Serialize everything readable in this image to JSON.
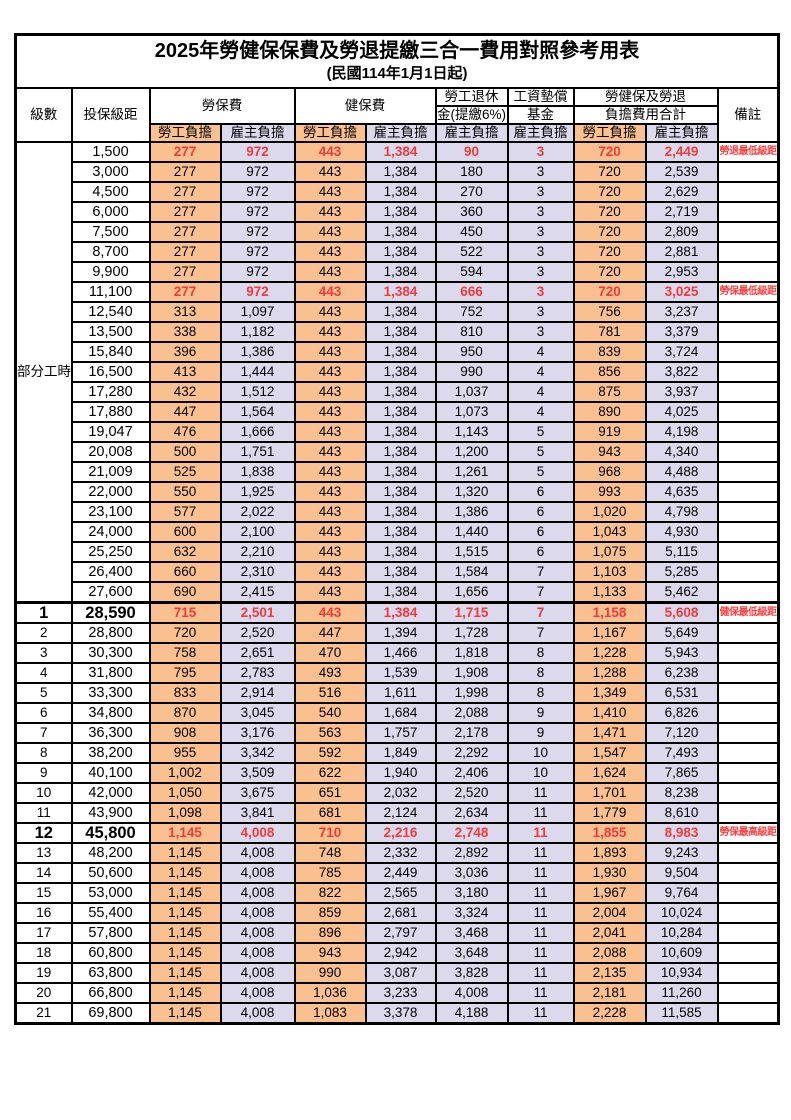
{
  "title": "2025年勞健保保費及勞退提繳三合一費用對照參考用表",
  "subtitle": "(民國114年1月1日起)",
  "header": {
    "level": "級數",
    "bracket": "投保級距",
    "labor_ins": "勞保費",
    "health_ins": "健保費",
    "pension_l1": "勞工退休",
    "pension_l2": "金(提繳6%)",
    "fund_l1": "工資墊償",
    "fund_l2": "基金",
    "total_l1": "勞健保及勞退",
    "total_l2": "負擔費用合計",
    "remark": "備註",
    "employee": "勞工負擔",
    "employer": "雇主負擔"
  },
  "part_time_label": "部分工時",
  "part_time_row_count": 23,
  "colors": {
    "emp-bg": "#FAC090",
    "er-bg": "#DCD9ED",
    "red": "#EF3B3B",
    "remark-red": "#FB4141",
    "border": "#000000"
  },
  "rows": [
    {
      "level": "",
      "bracket": "1,500",
      "v": [
        "277",
        "972",
        "443",
        "1,384",
        "90",
        "3",
        "720",
        "2,449"
      ],
      "remark": "勞退最低級距",
      "hl": true
    },
    {
      "level": "",
      "bracket": "3,000",
      "v": [
        "277",
        "972",
        "443",
        "1,384",
        "180",
        "3",
        "720",
        "2,539"
      ],
      "remark": ""
    },
    {
      "level": "",
      "bracket": "4,500",
      "v": [
        "277",
        "972",
        "443",
        "1,384",
        "270",
        "3",
        "720",
        "2,629"
      ],
      "remark": ""
    },
    {
      "level": "",
      "bracket": "6,000",
      "v": [
        "277",
        "972",
        "443",
        "1,384",
        "360",
        "3",
        "720",
        "2,719"
      ],
      "remark": ""
    },
    {
      "level": "",
      "bracket": "7,500",
      "v": [
        "277",
        "972",
        "443",
        "1,384",
        "450",
        "3",
        "720",
        "2,809"
      ],
      "remark": ""
    },
    {
      "level": "",
      "bracket": "8,700",
      "v": [
        "277",
        "972",
        "443",
        "1,384",
        "522",
        "3",
        "720",
        "2,881"
      ],
      "remark": ""
    },
    {
      "level": "",
      "bracket": "9,900",
      "v": [
        "277",
        "972",
        "443",
        "1,384",
        "594",
        "3",
        "720",
        "2,953"
      ],
      "remark": ""
    },
    {
      "level": "",
      "bracket": "11,100",
      "v": [
        "277",
        "972",
        "443",
        "1,384",
        "666",
        "3",
        "720",
        "3,025"
      ],
      "remark": "勞保最低級距",
      "hl": true
    },
    {
      "level": "",
      "bracket": "12,540",
      "v": [
        "313",
        "1,097",
        "443",
        "1,384",
        "752",
        "3",
        "756",
        "3,237"
      ],
      "remark": ""
    },
    {
      "level": "",
      "bracket": "13,500",
      "v": [
        "338",
        "1,182",
        "443",
        "1,384",
        "810",
        "3",
        "781",
        "3,379"
      ],
      "remark": ""
    },
    {
      "level": "",
      "bracket": "15,840",
      "v": [
        "396",
        "1,386",
        "443",
        "1,384",
        "950",
        "4",
        "839",
        "3,724"
      ],
      "remark": ""
    },
    {
      "level": "",
      "bracket": "16,500",
      "v": [
        "413",
        "1,444",
        "443",
        "1,384",
        "990",
        "4",
        "856",
        "3,822"
      ],
      "remark": ""
    },
    {
      "level": "",
      "bracket": "17,280",
      "v": [
        "432",
        "1,512",
        "443",
        "1,384",
        "1,037",
        "4",
        "875",
        "3,937"
      ],
      "remark": ""
    },
    {
      "level": "",
      "bracket": "17,880",
      "v": [
        "447",
        "1,564",
        "443",
        "1,384",
        "1,073",
        "4",
        "890",
        "4,025"
      ],
      "remark": ""
    },
    {
      "level": "",
      "bracket": "19,047",
      "v": [
        "476",
        "1,666",
        "443",
        "1,384",
        "1,143",
        "5",
        "919",
        "4,198"
      ],
      "remark": ""
    },
    {
      "level": "",
      "bracket": "20,008",
      "v": [
        "500",
        "1,751",
        "443",
        "1,384",
        "1,200",
        "5",
        "943",
        "4,340"
      ],
      "remark": ""
    },
    {
      "level": "",
      "bracket": "21,009",
      "v": [
        "525",
        "1,838",
        "443",
        "1,384",
        "1,261",
        "5",
        "968",
        "4,488"
      ],
      "remark": ""
    },
    {
      "level": "",
      "bracket": "22,000",
      "v": [
        "550",
        "1,925",
        "443",
        "1,384",
        "1,320",
        "6",
        "993",
        "4,635"
      ],
      "remark": ""
    },
    {
      "level": "",
      "bracket": "23,100",
      "v": [
        "577",
        "2,022",
        "443",
        "1,384",
        "1,386",
        "6",
        "1,020",
        "4,798"
      ],
      "remark": ""
    },
    {
      "level": "",
      "bracket": "24,000",
      "v": [
        "600",
        "2,100",
        "443",
        "1,384",
        "1,440",
        "6",
        "1,043",
        "4,930"
      ],
      "remark": ""
    },
    {
      "level": "",
      "bracket": "25,250",
      "v": [
        "632",
        "2,210",
        "443",
        "1,384",
        "1,515",
        "6",
        "1,075",
        "5,115"
      ],
      "remark": ""
    },
    {
      "level": "",
      "bracket": "26,400",
      "v": [
        "660",
        "2,310",
        "443",
        "1,384",
        "1,584",
        "7",
        "1,103",
        "5,285"
      ],
      "remark": ""
    },
    {
      "level": "",
      "bracket": "27,600",
      "v": [
        "690",
        "2,415",
        "443",
        "1,384",
        "1,656",
        "7",
        "1,133",
        "5,462"
      ],
      "remark": ""
    },
    {
      "level": "1",
      "bracket": "28,590",
      "v": [
        "715",
        "2,501",
        "443",
        "1,384",
        "1,715",
        "7",
        "1,158",
        "5,608"
      ],
      "remark": "健保最低級距",
      "hl": true,
      "big": true
    },
    {
      "level": "2",
      "bracket": "28,800",
      "v": [
        "720",
        "2,520",
        "447",
        "1,394",
        "1,728",
        "7",
        "1,167",
        "5,649"
      ],
      "remark": ""
    },
    {
      "level": "3",
      "bracket": "30,300",
      "v": [
        "758",
        "2,651",
        "470",
        "1,466",
        "1,818",
        "8",
        "1,228",
        "5,943"
      ],
      "remark": ""
    },
    {
      "level": "4",
      "bracket": "31,800",
      "v": [
        "795",
        "2,783",
        "493",
        "1,539",
        "1,908",
        "8",
        "1,288",
        "6,238"
      ],
      "remark": ""
    },
    {
      "level": "5",
      "bracket": "33,300",
      "v": [
        "833",
        "2,914",
        "516",
        "1,611",
        "1,998",
        "8",
        "1,349",
        "6,531"
      ],
      "remark": ""
    },
    {
      "level": "6",
      "bracket": "34,800",
      "v": [
        "870",
        "3,045",
        "540",
        "1,684",
        "2,088",
        "9",
        "1,410",
        "6,826"
      ],
      "remark": ""
    },
    {
      "level": "7",
      "bracket": "36,300",
      "v": [
        "908",
        "3,176",
        "563",
        "1,757",
        "2,178",
        "9",
        "1,471",
        "7,120"
      ],
      "remark": ""
    },
    {
      "level": "8",
      "bracket": "38,200",
      "v": [
        "955",
        "3,342",
        "592",
        "1,849",
        "2,292",
        "10",
        "1,547",
        "7,493"
      ],
      "remark": ""
    },
    {
      "level": "9",
      "bracket": "40,100",
      "v": [
        "1,002",
        "3,509",
        "622",
        "1,940",
        "2,406",
        "10",
        "1,624",
        "7,865"
      ],
      "remark": ""
    },
    {
      "level": "10",
      "bracket": "42,000",
      "v": [
        "1,050",
        "3,675",
        "651",
        "2,032",
        "2,520",
        "11",
        "1,701",
        "8,238"
      ],
      "remark": ""
    },
    {
      "level": "11",
      "bracket": "43,900",
      "v": [
        "1,098",
        "3,841",
        "681",
        "2,124",
        "2,634",
        "11",
        "1,779",
        "8,610"
      ],
      "remark": ""
    },
    {
      "level": "12",
      "bracket": "45,800",
      "v": [
        "1,145",
        "4,008",
        "710",
        "2,216",
        "2,748",
        "11",
        "1,855",
        "8,983"
      ],
      "remark": "勞保最高級距",
      "hl": true,
      "big": true
    },
    {
      "level": "13",
      "bracket": "48,200",
      "v": [
        "1,145",
        "4,008",
        "748",
        "2,332",
        "2,892",
        "11",
        "1,893",
        "9,243"
      ],
      "remark": ""
    },
    {
      "level": "14",
      "bracket": "50,600",
      "v": [
        "1,145",
        "4,008",
        "785",
        "2,449",
        "3,036",
        "11",
        "1,930",
        "9,504"
      ],
      "remark": ""
    },
    {
      "level": "15",
      "bracket": "53,000",
      "v": [
        "1,145",
        "4,008",
        "822",
        "2,565",
        "3,180",
        "11",
        "1,967",
        "9,764"
      ],
      "remark": ""
    },
    {
      "level": "16",
      "bracket": "55,400",
      "v": [
        "1,145",
        "4,008",
        "859",
        "2,681",
        "3,324",
        "11",
        "2,004",
        "10,024"
      ],
      "remark": ""
    },
    {
      "level": "17",
      "bracket": "57,800",
      "v": [
        "1,145",
        "4,008",
        "896",
        "2,797",
        "3,468",
        "11",
        "2,041",
        "10,284"
      ],
      "remark": ""
    },
    {
      "level": "18",
      "bracket": "60,800",
      "v": [
        "1,145",
        "4,008",
        "943",
        "2,942",
        "3,648",
        "11",
        "2,088",
        "10,609"
      ],
      "remark": ""
    },
    {
      "level": "19",
      "bracket": "63,800",
      "v": [
        "1,145",
        "4,008",
        "990",
        "3,087",
        "3,828",
        "11",
        "2,135",
        "10,934"
      ],
      "remark": ""
    },
    {
      "level": "20",
      "bracket": "66,800",
      "v": [
        "1,145",
        "4,008",
        "1,036",
        "3,233",
        "4,008",
        "11",
        "2,181",
        "11,260"
      ],
      "remark": ""
    },
    {
      "level": "21",
      "bracket": "69,800",
      "v": [
        "1,145",
        "4,008",
        "1,083",
        "3,378",
        "4,188",
        "11",
        "2,228",
        "11,585"
      ],
      "remark": ""
    }
  ]
}
